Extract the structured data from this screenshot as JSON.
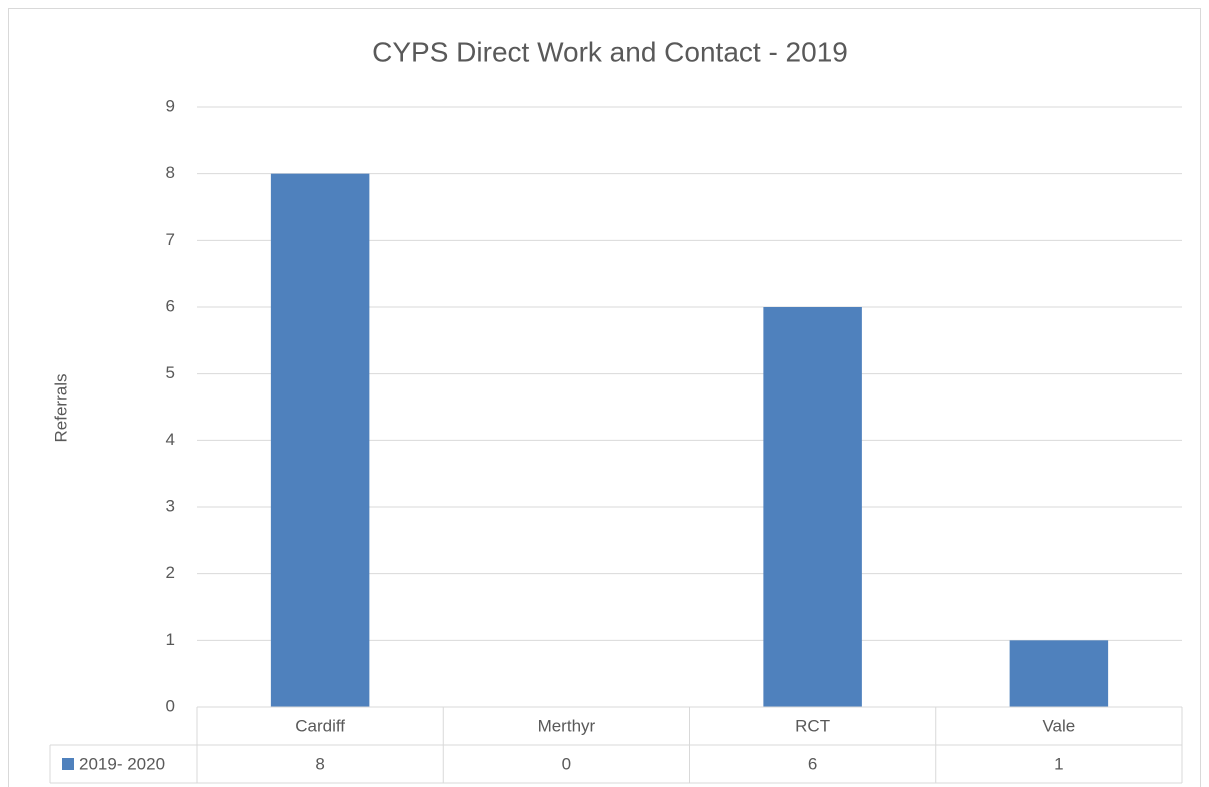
{
  "chart_data": {
    "type": "bar",
    "title": "CYPS Direct Work and Contact - 2019",
    "y_label": "Referrals",
    "categories": [
      "Cardiff",
      "Merthyr",
      "RCT",
      "Vale"
    ],
    "series": [
      {
        "name": "2019- 2020",
        "color": "#4f81bd",
        "values": [
          8,
          0,
          6,
          1
        ]
      }
    ],
    "ylim": [
      0,
      9
    ],
    "yticks": [
      0,
      1,
      2,
      3,
      4,
      5,
      6,
      7,
      8,
      9
    ],
    "grid": true,
    "data_table": true
  }
}
